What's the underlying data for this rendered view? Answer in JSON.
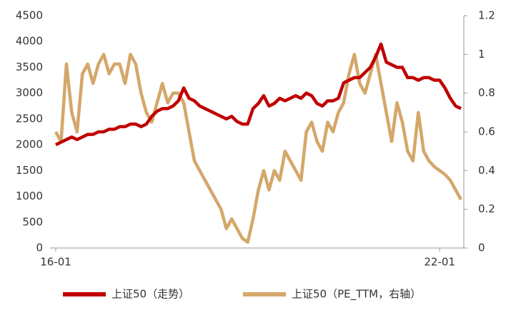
{
  "chart_data": {
    "type": "line",
    "categories": [
      "16-01",
      null,
      null,
      null,
      null,
      null,
      null,
      null,
      null,
      null,
      null,
      null,
      null,
      null,
      null,
      null,
      null,
      null,
      null,
      null,
      null,
      null,
      null,
      null,
      null,
      null,
      null,
      null,
      null,
      null,
      null,
      null,
      null,
      null,
      null,
      null,
      null,
      null,
      null,
      null,
      null,
      null,
      null,
      null,
      null,
      null,
      null,
      null,
      null,
      null,
      null,
      null,
      null,
      null,
      null,
      null,
      null,
      null,
      null,
      null,
      null,
      null,
      null,
      null,
      null,
      null,
      null,
      null,
      null,
      null,
      null,
      null,
      "22-01",
      null,
      null,
      null,
      null
    ],
    "series": [
      {
        "name": "上证50（走势）",
        "color": "#c00000",
        "values": [
          2000,
          2050,
          2100,
          2150,
          2100,
          2150,
          2200,
          2200,
          2250,
          2250,
          2300,
          2300,
          2350,
          2350,
          2400,
          2400,
          2350,
          2400,
          2550,
          2650,
          2700,
          2700,
          2750,
          2850,
          3100,
          2900,
          2850,
          2750,
          2700,
          2650,
          2600,
          2550,
          2500,
          2550,
          2450,
          2400,
          2400,
          2700,
          2800,
          2950,
          2750,
          2800,
          2900,
          2850,
          2900,
          2950,
          2900,
          3000,
          2950,
          2800,
          2750,
          2850,
          2850,
          2900,
          3200,
          3250,
          3300,
          3300,
          3400,
          3500,
          3700,
          3950,
          3600,
          3550,
          3500,
          3500,
          3300,
          3300,
          3250,
          3300,
          3300,
          3250,
          3250,
          3100,
          2900,
          2750,
          2700
        ]
      },
      {
        "name": "上证50（PE_TTM，右轴）",
        "color": "#d4a76a",
        "axis": "y2",
        "values": [
          0.6,
          0.55,
          0.95,
          0.7,
          0.6,
          0.9,
          0.95,
          0.85,
          0.95,
          1.0,
          0.9,
          0.95,
          0.95,
          0.85,
          1.0,
          0.95,
          0.8,
          0.7,
          0.65,
          0.75,
          0.85,
          0.75,
          0.8,
          0.8,
          0.75,
          0.6,
          0.45,
          0.4,
          0.35,
          0.3,
          0.25,
          0.2,
          0.1,
          0.15,
          0.1,
          0.05,
          0.03,
          0.15,
          0.3,
          0.4,
          0.3,
          0.4,
          0.35,
          0.5,
          0.45,
          0.4,
          0.35,
          0.6,
          0.65,
          0.55,
          0.5,
          0.65,
          0.6,
          0.7,
          0.75,
          0.9,
          1.0,
          0.85,
          0.8,
          0.9,
          1.0,
          0.85,
          0.7,
          0.55,
          0.75,
          0.65,
          0.5,
          0.45,
          0.7,
          0.5,
          0.45,
          0.42,
          0.4,
          0.38,
          0.35,
          0.3,
          0.25
        ]
      }
    ],
    "ylim": [
      0,
      4500
    ],
    "yticks": [
      0,
      500,
      1000,
      1500,
      2000,
      2500,
      3000,
      3500,
      4000,
      4500
    ],
    "y2lim": [
      0,
      1.2
    ],
    "y2ticks": [
      0,
      0.2,
      0.4,
      0.6,
      0.8,
      1,
      1.2
    ],
    "legend": "bottom"
  }
}
